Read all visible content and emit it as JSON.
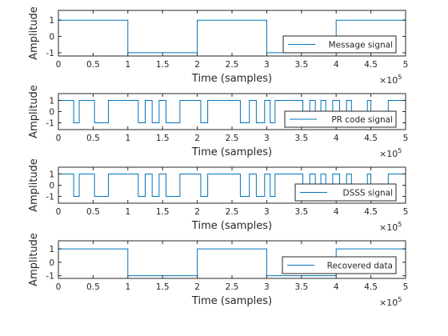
{
  "figure": {
    "background": "#ffffff",
    "line_color": "#0072BD",
    "axis_color": "#262626"
  },
  "chart_data": [
    {
      "type": "line",
      "title": "",
      "xlabel": "Time (samples)",
      "ylabel": "Amplitude",
      "xlim": [
        0,
        5
      ],
      "ylim": [
        -1.2,
        1.6
      ],
      "xticks": [
        "0",
        "0.5",
        "1",
        "1.5",
        "2",
        "2.5",
        "3",
        "3.5",
        "4",
        "4.5",
        "5"
      ],
      "yticks": [
        "1",
        "0",
        "-1"
      ],
      "x_exponent": "5",
      "legend": {
        "label": "Message signal",
        "placement": "right-middle"
      },
      "series": [
        {
          "name": "Message signal",
          "steps": [
            [
              0,
              1
            ],
            [
              1,
              -1
            ],
            [
              2,
              1
            ],
            [
              3,
              -1
            ],
            [
              4,
              1
            ],
            [
              5,
              1
            ]
          ]
        }
      ]
    },
    {
      "type": "line",
      "title": "",
      "xlabel": "Time (samples)",
      "ylabel": "Amplitude",
      "xlim": [
        0,
        5
      ],
      "ylim": [
        -1.6,
        1.6
      ],
      "xticks": [
        "0",
        "0.5",
        "1",
        "1.5",
        "2",
        "2.5",
        "3",
        "3.5",
        "4",
        "4.5",
        "5"
      ],
      "yticks": [
        "1",
        "0",
        "-1"
      ],
      "x_exponent": "5",
      "legend": {
        "label": "PR code signal",
        "placement": "bottom-right"
      },
      "series": [
        {
          "name": "PR code signal",
          "steps": [
            [
              0,
              1
            ],
            [
              0.22,
              -1
            ],
            [
              0.3,
              1
            ],
            [
              0.52,
              -1
            ],
            [
              0.72,
              1
            ],
            [
              1.15,
              -1
            ],
            [
              1.25,
              1
            ],
            [
              1.35,
              -1
            ],
            [
              1.45,
              1
            ],
            [
              1.55,
              -1
            ],
            [
              1.75,
              1
            ],
            [
              2.05,
              -1
            ],
            [
              2.15,
              1
            ],
            [
              2.62,
              -1
            ],
            [
              2.75,
              1
            ],
            [
              2.85,
              -1
            ],
            [
              2.97,
              1
            ],
            [
              3.05,
              -1
            ],
            [
              3.12,
              1
            ],
            [
              3.52,
              -1
            ],
            [
              3.62,
              1
            ],
            [
              3.7,
              -1
            ],
            [
              3.78,
              1
            ],
            [
              3.85,
              -1
            ],
            [
              3.95,
              1
            ],
            [
              4.05,
              -1
            ],
            [
              4.15,
              1
            ],
            [
              4.22,
              -1
            ],
            [
              4.45,
              1
            ],
            [
              4.5,
              -1
            ],
            [
              4.75,
              1
            ],
            [
              5,
              1
            ]
          ]
        }
      ]
    },
    {
      "type": "line",
      "title": "",
      "xlabel": "Time (samples)",
      "ylabel": "Amplitude",
      "xlim": [
        0,
        5
      ],
      "ylim": [
        -1.6,
        1.6
      ],
      "xticks": [
        "0",
        "0.5",
        "1",
        "1.5",
        "2",
        "2.5",
        "3",
        "3.5",
        "4",
        "4.5",
        "5"
      ],
      "yticks": [
        "1",
        "0",
        "-1"
      ],
      "x_exponent": "5",
      "legend": {
        "label": "DSSS signal",
        "placement": "bottom-right"
      },
      "series": [
        {
          "name": "DSSS signal",
          "steps": [
            [
              0,
              1
            ],
            [
              0.22,
              -1
            ],
            [
              0.3,
              1
            ],
            [
              0.52,
              -1
            ],
            [
              0.72,
              1
            ],
            [
              1.15,
              -1
            ],
            [
              1.25,
              1
            ],
            [
              1.35,
              -1
            ],
            [
              1.45,
              1
            ],
            [
              1.55,
              -1
            ],
            [
              1.75,
              1
            ],
            [
              2.05,
              -1
            ],
            [
              2.15,
              1
            ],
            [
              2.62,
              -1
            ],
            [
              2.75,
              1
            ],
            [
              2.85,
              -1
            ],
            [
              2.97,
              1
            ],
            [
              3.05,
              -1
            ],
            [
              3.12,
              1
            ],
            [
              3.52,
              -1
            ],
            [
              3.62,
              1
            ],
            [
              3.7,
              -1
            ],
            [
              3.78,
              1
            ],
            [
              3.85,
              -1
            ],
            [
              3.95,
              1
            ],
            [
              4.05,
              -1
            ],
            [
              4.15,
              1
            ],
            [
              4.22,
              -1
            ],
            [
              4.45,
              1
            ],
            [
              4.5,
              -1
            ],
            [
              4.75,
              1
            ],
            [
              5,
              1
            ]
          ]
        }
      ]
    },
    {
      "type": "line",
      "title": "",
      "xlabel": "Time (samples)",
      "ylabel": "Amplitude",
      "xlim": [
        0,
        5
      ],
      "ylim": [
        -1.2,
        1.6
      ],
      "xticks": [
        "0",
        "0.5",
        "1",
        "1.5",
        "2",
        "2.5",
        "3",
        "3.5",
        "4",
        "4.5",
        "5"
      ],
      "yticks": [
        "1",
        "0",
        "-1"
      ],
      "x_exponent": "5",
      "legend": {
        "label": "Recovered data",
        "placement": "right-middle"
      },
      "series": [
        {
          "name": "Recovered data",
          "steps": [
            [
              0,
              1
            ],
            [
              1,
              -1
            ],
            [
              2,
              1
            ],
            [
              3,
              -1
            ],
            [
              4,
              1
            ],
            [
              5,
              1
            ]
          ]
        }
      ]
    }
  ]
}
